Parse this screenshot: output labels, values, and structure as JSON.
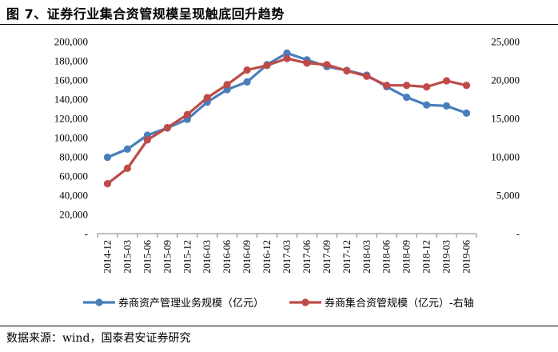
{
  "page": {
    "title": "图 7、证券行业集合资管规模呈现触底回升趋势",
    "source": "数据来源：wind，国泰君安证券研究"
  },
  "chart_data": {
    "type": "line",
    "categories": [
      "2014-12",
      "2015-03",
      "2015-06",
      "2015-09",
      "2015-12",
      "2016-03",
      "2016-06",
      "2016-09",
      "2016-12",
      "2017-03",
      "2017-06",
      "2017-09",
      "2017-12",
      "2018-03",
      "2018-06",
      "2018-09",
      "2018-12",
      "2019-03",
      "2019-06"
    ],
    "y_left": {
      "ylim": [
        0,
        200000
      ],
      "ticks": [
        0,
        20000,
        40000,
        60000,
        80000,
        100000,
        120000,
        140000,
        160000,
        180000,
        200000
      ],
      "tick_labels": [
        "-",
        "20,000",
        "40,000",
        "60,000",
        "80,000",
        "100,000",
        "120,000",
        "140,000",
        "160,000",
        "180,000",
        "200,000"
      ]
    },
    "y_right": {
      "ylim": [
        0,
        25000
      ],
      "ticks": [
        0,
        5000,
        10000,
        15000,
        20000,
        25000
      ],
      "tick_labels": [
        "-",
        "5,000",
        "10,000",
        "15,000",
        "20,000",
        "25,000"
      ]
    },
    "series": [
      {
        "name": "券商资产管理业务规模（亿元）",
        "axis": "left",
        "color": "#4a7ebb",
        "values": [
          79500,
          88000,
          102500,
          110000,
          119000,
          137000,
          150000,
          158000,
          176000,
          188000,
          181000,
          174000,
          170000,
          165000,
          153000,
          142000,
          134000,
          133000,
          125500
        ]
      },
      {
        "name": "券商集合资管规模（亿元）-右轴",
        "axis": "right",
        "color": "#be4b48",
        "values": [
          6500,
          8500,
          12200,
          13800,
          15500,
          17700,
          19400,
          21300,
          21900,
          22800,
          22200,
          22000,
          21200,
          20500,
          19300,
          19300,
          19100,
          19900,
          19300
        ]
      }
    ],
    "legend": "bottom",
    "grid": false
  }
}
